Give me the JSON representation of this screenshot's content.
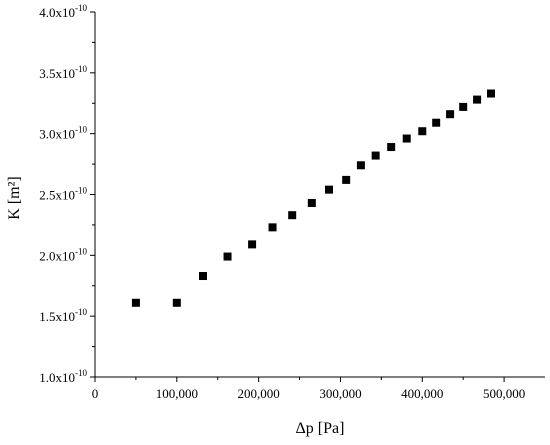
{
  "chart_data": {
    "type": "scatter",
    "title": "",
    "xlabel": "Δp [Pa]",
    "ylabel": "K [m²]",
    "xlim": [
      0,
      550000
    ],
    "ylim": [
      1e-10,
      4e-10
    ],
    "grid": false,
    "legend": "none",
    "marker": "square",
    "marker_color": "#000000",
    "x_ticks": [
      {
        "value": 0,
        "label": "0"
      },
      {
        "value": 100000,
        "label": "100,000"
      },
      {
        "value": 200000,
        "label": "200,000"
      },
      {
        "value": 300000,
        "label": "300,000"
      },
      {
        "value": 400000,
        "label": "400,000"
      },
      {
        "value": 500000,
        "label": "500,000"
      }
    ],
    "y_ticks": [
      {
        "value": 1e-10,
        "mantissa": "1.0x10",
        "exponent": "-10"
      },
      {
        "value": 1.5e-10,
        "mantissa": "1.5x10",
        "exponent": "-10"
      },
      {
        "value": 2e-10,
        "mantissa": "2.0x10",
        "exponent": "-10"
      },
      {
        "value": 2.5e-10,
        "mantissa": "2.5x10",
        "exponent": "-10"
      },
      {
        "value": 3e-10,
        "mantissa": "3.0x10",
        "exponent": "-10"
      },
      {
        "value": 3.5e-10,
        "mantissa": "3.5x10",
        "exponent": "-10"
      },
      {
        "value": 4e-10,
        "mantissa": "4.0x10",
        "exponent": "-10"
      }
    ],
    "x": [
      50000,
      100000,
      132000,
      162000,
      192000,
      217000,
      241000,
      265000,
      286000,
      307000,
      325000,
      343000,
      362000,
      381000,
      400000,
      417000,
      434000,
      450000,
      467000,
      484000
    ],
    "y": [
      1.61e-10,
      1.61e-10,
      1.83e-10,
      1.99e-10,
      2.09e-10,
      2.23e-10,
      2.33e-10,
      2.43e-10,
      2.54e-10,
      2.62e-10,
      2.74e-10,
      2.82e-10,
      2.89e-10,
      2.96e-10,
      3.02e-10,
      3.09e-10,
      3.16e-10,
      3.22e-10,
      3.28e-10,
      3.33e-10
    ]
  }
}
